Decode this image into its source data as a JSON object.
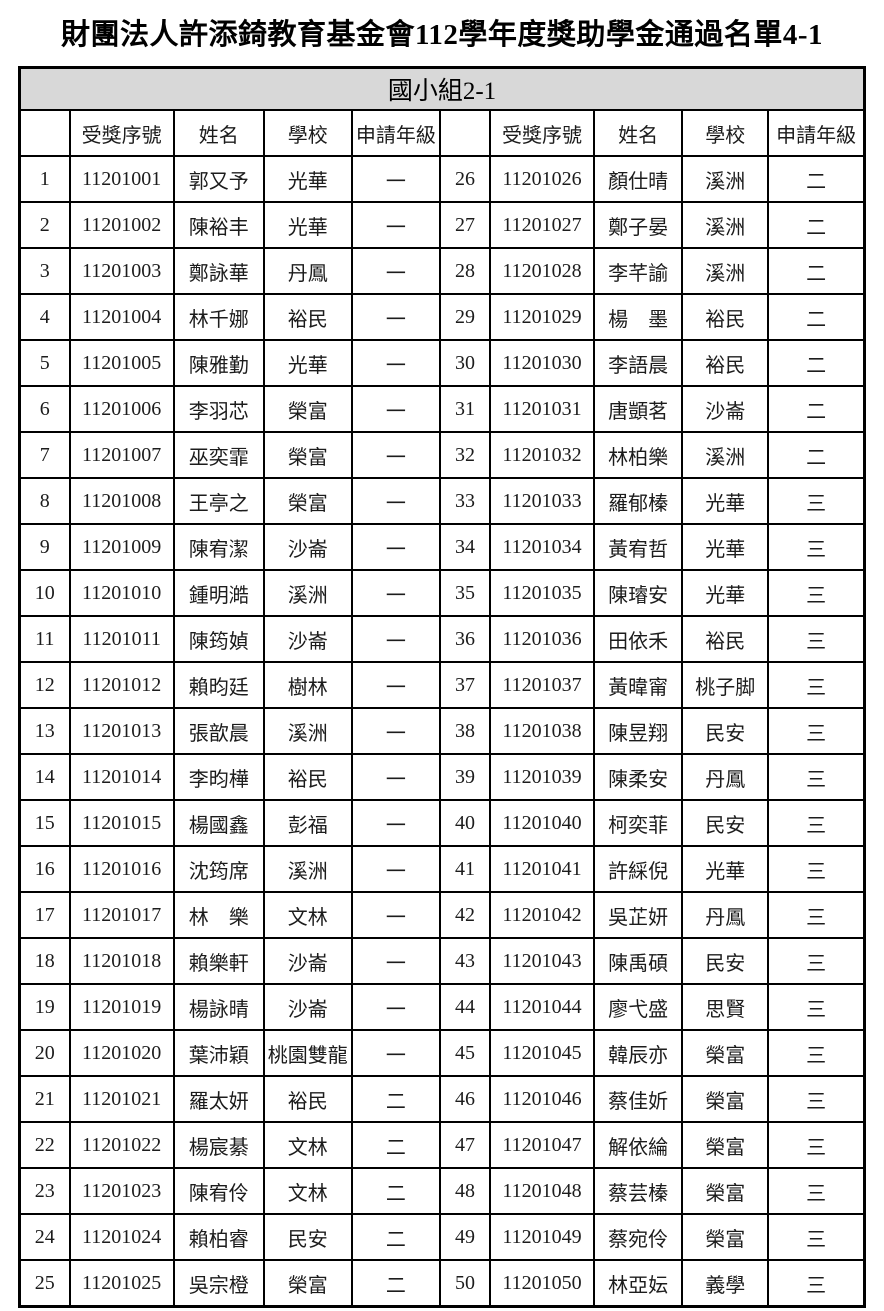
{
  "title": "財團法人許添錡教育基金會112學年度獎助學金通過名單4-1",
  "table": {
    "group_title": "國小組2-1",
    "headers": [
      "",
      "受獎序號",
      "姓名",
      "學校",
      "申請年級",
      "",
      "受獎序號",
      "姓名",
      "學校",
      "申請年級"
    ],
    "left_rows": [
      [
        "1",
        "11201001",
        "郭又予",
        "光華",
        "一"
      ],
      [
        "2",
        "11201002",
        "陳裕丰",
        "光華",
        "一"
      ],
      [
        "3",
        "11201003",
        "鄭詠華",
        "丹鳳",
        "一"
      ],
      [
        "4",
        "11201004",
        "林千娜",
        "裕民",
        "一"
      ],
      [
        "5",
        "11201005",
        "陳雅勤",
        "光華",
        "一"
      ],
      [
        "6",
        "11201006",
        "李羽芯",
        "榮富",
        "一"
      ],
      [
        "7",
        "11201007",
        "巫奕霏",
        "榮富",
        "一"
      ],
      [
        "8",
        "11201008",
        "王亭之",
        "榮富",
        "一"
      ],
      [
        "9",
        "11201009",
        "陳宥潔",
        "沙崙",
        "一"
      ],
      [
        "10",
        "11201010",
        "鍾明澔",
        "溪洲",
        "一"
      ],
      [
        "11",
        "11201011",
        "陳筠媜",
        "沙崙",
        "一"
      ],
      [
        "12",
        "11201012",
        "賴昀廷",
        "樹林",
        "一"
      ],
      [
        "13",
        "11201013",
        "張歆晨",
        "溪洲",
        "一"
      ],
      [
        "14",
        "11201014",
        "李昀樺",
        "裕民",
        "一"
      ],
      [
        "15",
        "11201015",
        "楊國鑫",
        "彭福",
        "一"
      ],
      [
        "16",
        "11201016",
        "沈筠席",
        "溪洲",
        "一"
      ],
      [
        "17",
        "11201017",
        "林　樂",
        "文林",
        "一"
      ],
      [
        "18",
        "11201018",
        "賴樂軒",
        "沙崙",
        "一"
      ],
      [
        "19",
        "11201019",
        "楊詠晴",
        "沙崙",
        "一"
      ],
      [
        "20",
        "11201020",
        "葉沛穎",
        "桃園雙龍",
        "一"
      ],
      [
        "21",
        "11201021",
        "羅太妍",
        "裕民",
        "二"
      ],
      [
        "22",
        "11201022",
        "楊宸綦",
        "文林",
        "二"
      ],
      [
        "23",
        "11201023",
        "陳宥伶",
        "文林",
        "二"
      ],
      [
        "24",
        "11201024",
        "賴柏睿",
        "民安",
        "二"
      ],
      [
        "25",
        "11201025",
        "吳宗橙",
        "榮富",
        "二"
      ]
    ],
    "right_rows": [
      [
        "26",
        "11201026",
        "顏仕晴",
        "溪洲",
        "二"
      ],
      [
        "27",
        "11201027",
        "鄭子晏",
        "溪洲",
        "二"
      ],
      [
        "28",
        "11201028",
        "李芊諭",
        "溪洲",
        "二"
      ],
      [
        "29",
        "11201029",
        "楊　墨",
        "裕民",
        "二"
      ],
      [
        "30",
        "11201030",
        "李語晨",
        "裕民",
        "二"
      ],
      [
        "31",
        "11201031",
        "唐顗茗",
        "沙崙",
        "二"
      ],
      [
        "32",
        "11201032",
        "林柏樂",
        "溪洲",
        "二"
      ],
      [
        "33",
        "11201033",
        "羅郁榛",
        "光華",
        "三"
      ],
      [
        "34",
        "11201034",
        "黃宥哲",
        "光華",
        "三"
      ],
      [
        "35",
        "11201035",
        "陳璿安",
        "光華",
        "三"
      ],
      [
        "36",
        "11201036",
        "田依禾",
        "裕民",
        "三"
      ],
      [
        "37",
        "11201037",
        "黃暐甯",
        "桃子脚",
        "三"
      ],
      [
        "38",
        "11201038",
        "陳昱翔",
        "民安",
        "三"
      ],
      [
        "39",
        "11201039",
        "陳柔安",
        "丹鳳",
        "三"
      ],
      [
        "40",
        "11201040",
        "柯奕菲",
        "民安",
        "三"
      ],
      [
        "41",
        "11201041",
        "許綵倪",
        "光華",
        "三"
      ],
      [
        "42",
        "11201042",
        "吳芷妍",
        "丹鳳",
        "三"
      ],
      [
        "43",
        "11201043",
        "陳禹碩",
        "民安",
        "三"
      ],
      [
        "44",
        "11201044",
        "廖弋盛",
        "思賢",
        "三"
      ],
      [
        "45",
        "11201045",
        "韓辰亦",
        "榮富",
        "三"
      ],
      [
        "46",
        "11201046",
        "蔡佳妡",
        "榮富",
        "三"
      ],
      [
        "47",
        "11201047",
        "解依綸",
        "榮富",
        "三"
      ],
      [
        "48",
        "11201048",
        "蔡芸榛",
        "榮富",
        "三"
      ],
      [
        "49",
        "11201049",
        "蔡宛伶",
        "榮富",
        "三"
      ],
      [
        "50",
        "11201050",
        "林亞妘",
        "義學",
        "三"
      ]
    ]
  }
}
